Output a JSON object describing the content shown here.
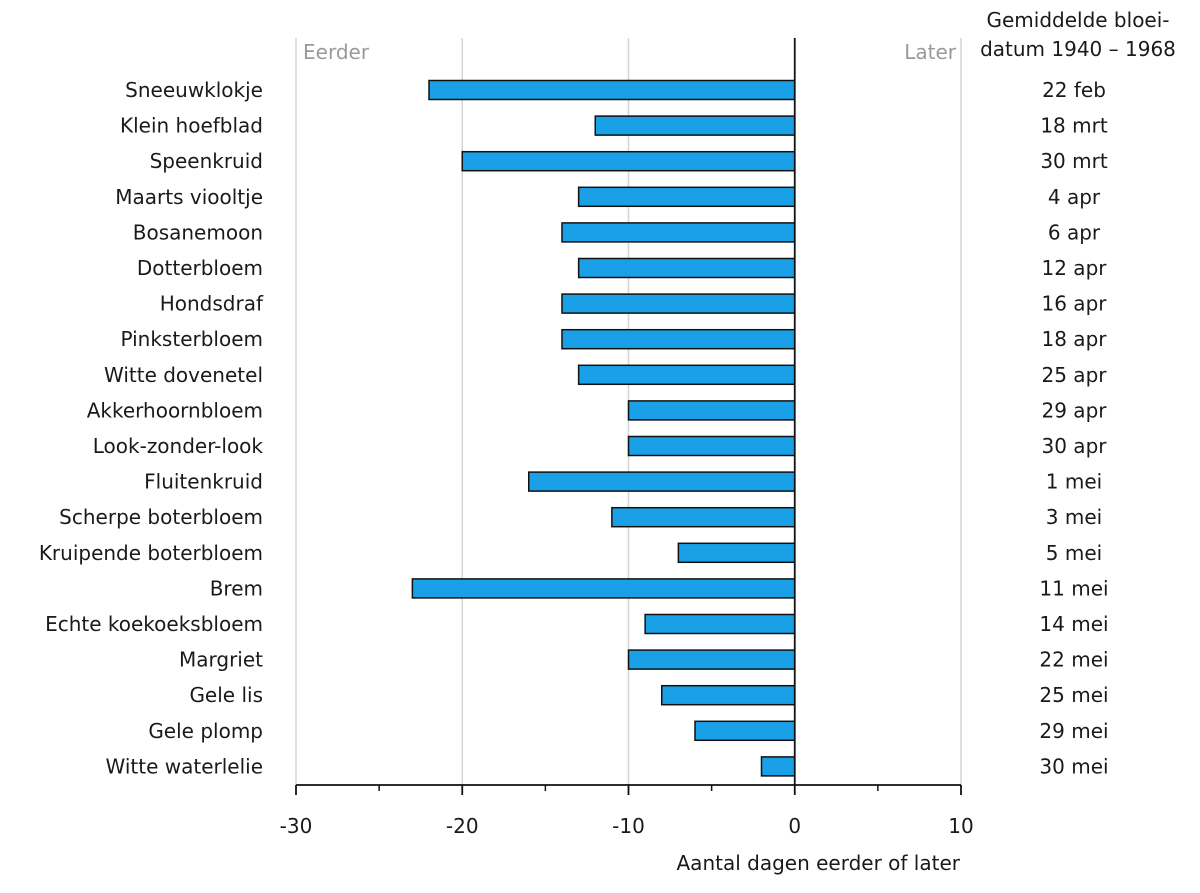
{
  "chart_data": {
    "type": "bar",
    "orientation": "horizontal",
    "categories": [
      "Sneeuwklokje",
      "Klein hoefblad",
      "Speenkruid",
      "Maarts viooltje",
      "Bosanemoon",
      "Dotterbloem",
      "Hondsdraf",
      "Pinksterbloem",
      "Witte dovenetel",
      "Akkerhoornbloem",
      "Look-zonder-look",
      "Fluitenkruid",
      "Scherpe boterbloem",
      "Kruipende boterbloem",
      "Brem",
      "Echte koekoeksbloem",
      "Margriet",
      "Gele lis",
      "Gele plomp",
      "Witte waterlelie"
    ],
    "values": [
      -22,
      -12,
      -20,
      -13,
      -14,
      -13,
      -14,
      -14,
      -13,
      -10,
      -10,
      -16,
      -11,
      -7,
      -23,
      -9,
      -10,
      -8,
      -6,
      -2
    ],
    "bloom_dates": [
      "22 feb",
      "18 mrt",
      "30 mrt",
      "4 apr",
      "6 apr",
      "12 apr",
      "16 apr",
      "18 apr",
      "25 apr",
      "29 apr",
      "30 apr",
      "1 mei",
      "3 mei",
      "5 mei",
      "11 mei",
      "14 mei",
      "22 mei",
      "25 mei",
      "29 mei",
      "30 mei"
    ],
    "bloom_header": [
      "Gemiddelde bloei-",
      "datum 1940 – 1968"
    ],
    "left_label": "Eerder",
    "right_label": "Later",
    "xlabel": "Aantal dagen eerder of later",
    "ylabel": "",
    "title": "",
    "xlim": [
      -30,
      10
    ],
    "xticks": [
      -30,
      -20,
      -10,
      0,
      10
    ],
    "xtick_labels": [
      "-30",
      "-20",
      "-10",
      "0",
      "10"
    ],
    "minor_ticks": [
      -25,
      -15,
      -5,
      5
    ],
    "grid": true,
    "bar_color": "#1aa0e6",
    "bar_stroke": "#111111"
  }
}
